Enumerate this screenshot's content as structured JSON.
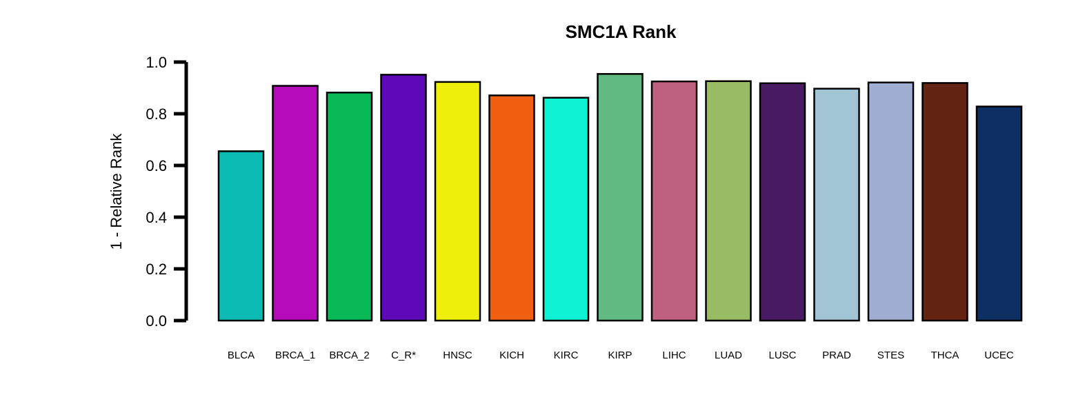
{
  "chart_data": {
    "type": "bar",
    "title": "SMC1A Rank",
    "ylabel": "1 - Relative Rank",
    "xlabel": "",
    "ylim": [
      0,
      1.0
    ],
    "yticks": [
      0.0,
      0.2,
      0.4,
      0.6,
      0.8,
      1.0
    ],
    "ytick_labels": [
      "0.0",
      "0.2",
      "0.4",
      "0.6",
      "0.8",
      "1.0"
    ],
    "grid": false,
    "legend": "none",
    "categories": [
      "BLCA",
      "BRCA_1",
      "BRCA_2",
      "C_R*",
      "HNSC",
      "KICH",
      "KIRC",
      "KIRP",
      "LIHC",
      "LUAD",
      "LUSC",
      "PRAD",
      "STES",
      "THCA",
      "UCEC"
    ],
    "values": [
      0.655,
      0.908,
      0.882,
      0.951,
      0.923,
      0.871,
      0.862,
      0.954,
      0.925,
      0.926,
      0.918,
      0.897,
      0.921,
      0.919,
      0.828
    ],
    "colors": [
      "#0BBBB3",
      "#B50BBB",
      "#09B857",
      "#5E09B8",
      "#EEF00C",
      "#F15F10",
      "#0EF1D3",
      "#61BA81",
      "#BE6180",
      "#97BC63",
      "#481A62",
      "#A1C5D5",
      "#A1AED3",
      "#632412",
      "#0E2F64"
    ]
  }
}
